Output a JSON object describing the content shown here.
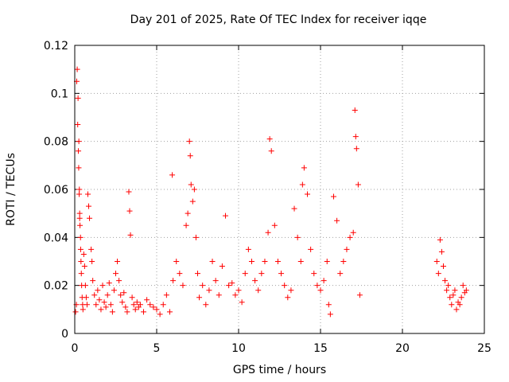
{
  "chart_data": {
    "type": "scatter",
    "title": "Day 201 of 2025, Rate Of TEC Index for receiver iqqe",
    "xlabel": "GPS time / hours",
    "ylabel": "ROTI / TECUs",
    "xlim": [
      0,
      25
    ],
    "ylim": [
      0,
      0.12
    ],
    "xticks": [
      0,
      5,
      10,
      15,
      20,
      25
    ],
    "yticks": [
      0,
      0.02,
      0.04,
      0.06,
      0.08,
      0.1,
      0.12
    ],
    "grid": true,
    "marker": "+",
    "color": "#ff0000",
    "series": [
      {
        "x": [
          0.05,
          0.1,
          0.12,
          0.15,
          0.18,
          0.2,
          0.22,
          0.24,
          0.25,
          0.27,
          0.28,
          0.3,
          0.3,
          0.32,
          0.35,
          0.36,
          0.38,
          0.4,
          0.42,
          0.45,
          0.48,
          0.5,
          0.55,
          0.6,
          0.65,
          0.7,
          0.75,
          0.8,
          0.85,
          0.9,
          1.0,
          1.05,
          1.1,
          1.2,
          1.3,
          1.4,
          1.5,
          1.6,
          1.7,
          1.8,
          1.9,
          2.0,
          2.1,
          2.2,
          2.3,
          2.4,
          2.5,
          2.6,
          2.7,
          2.8,
          2.9,
          3.0,
          3.1,
          3.2,
          3.3,
          3.35,
          3.4,
          3.5,
          3.6,
          3.7,
          3.8,
          3.9,
          4.0,
          4.2,
          4.4,
          4.6,
          4.8,
          5.0,
          5.2,
          5.4,
          5.6,
          5.8,
          5.95,
          6.0,
          6.2,
          6.4,
          6.6,
          6.8,
          6.9,
          7.0,
          7.05,
          7.1,
          7.2,
          7.3,
          7.4,
          7.5,
          7.6,
          7.8,
          8.0,
          8.2,
          8.4,
          8.6,
          8.8,
          9.0,
          9.2,
          9.4,
          9.6,
          9.8,
          10.0,
          10.2,
          10.4,
          10.6,
          10.8,
          11.0,
          11.2,
          11.4,
          11.6,
          11.8,
          11.9,
          12.0,
          12.2,
          12.4,
          12.6,
          12.8,
          13.0,
          13.2,
          13.4,
          13.6,
          13.8,
          13.9,
          14.0,
          14.2,
          14.4,
          14.6,
          14.8,
          15.0,
          15.2,
          15.4,
          15.5,
          15.6,
          15.8,
          16.0,
          16.2,
          16.4,
          16.6,
          16.8,
          17.0,
          17.1,
          17.15,
          17.2,
          17.3,
          17.4,
          22.1,
          22.2,
          22.3,
          22.4,
          22.5,
          22.6,
          22.7,
          22.8,
          22.9,
          23.0,
          23.1,
          23.2,
          23.3,
          23.4,
          23.5,
          23.6,
          23.7,
          23.8,
          23.9
        ],
        "y": [
          0.009,
          0.012,
          0.105,
          0.11,
          0.087,
          0.098,
          0.076,
          0.069,
          0.08,
          0.058,
          0.06,
          0.05,
          0.048,
          0.045,
          0.04,
          0.035,
          0.03,
          0.025,
          0.02,
          0.015,
          0.012,
          0.01,
          0.033,
          0.028,
          0.02,
          0.015,
          0.012,
          0.058,
          0.053,
          0.048,
          0.035,
          0.03,
          0.022,
          0.016,
          0.012,
          0.018,
          0.014,
          0.01,
          0.02,
          0.013,
          0.011,
          0.016,
          0.021,
          0.012,
          0.009,
          0.018,
          0.025,
          0.03,
          0.022,
          0.016,
          0.013,
          0.017,
          0.011,
          0.009,
          0.059,
          0.051,
          0.041,
          0.015,
          0.012,
          0.01,
          0.013,
          0.011,
          0.012,
          0.009,
          0.014,
          0.012,
          0.011,
          0.01,
          0.008,
          0.012,
          0.016,
          0.009,
          0.066,
          0.022,
          0.03,
          0.025,
          0.02,
          0.045,
          0.05,
          0.08,
          0.074,
          0.062,
          0.055,
          0.06,
          0.04,
          0.025,
          0.015,
          0.02,
          0.012,
          0.018,
          0.03,
          0.022,
          0.016,
          0.028,
          0.049,
          0.02,
          0.021,
          0.016,
          0.018,
          0.013,
          0.025,
          0.035,
          0.03,
          0.022,
          0.018,
          0.025,
          0.03,
          0.042,
          0.081,
          0.076,
          0.045,
          0.03,
          0.025,
          0.02,
          0.015,
          0.018,
          0.052,
          0.04,
          0.03,
          0.062,
          0.069,
          0.058,
          0.035,
          0.025,
          0.02,
          0.018,
          0.022,
          0.03,
          0.012,
          0.008,
          0.057,
          0.047,
          0.025,
          0.03,
          0.035,
          0.04,
          0.042,
          0.093,
          0.082,
          0.077,
          0.062,
          0.016,
          0.03,
          0.025,
          0.039,
          0.034,
          0.028,
          0.022,
          0.018,
          0.02,
          0.015,
          0.012,
          0.016,
          0.018,
          0.01,
          0.013,
          0.012,
          0.015,
          0.02,
          0.017,
          0.018
        ]
      }
    ]
  }
}
